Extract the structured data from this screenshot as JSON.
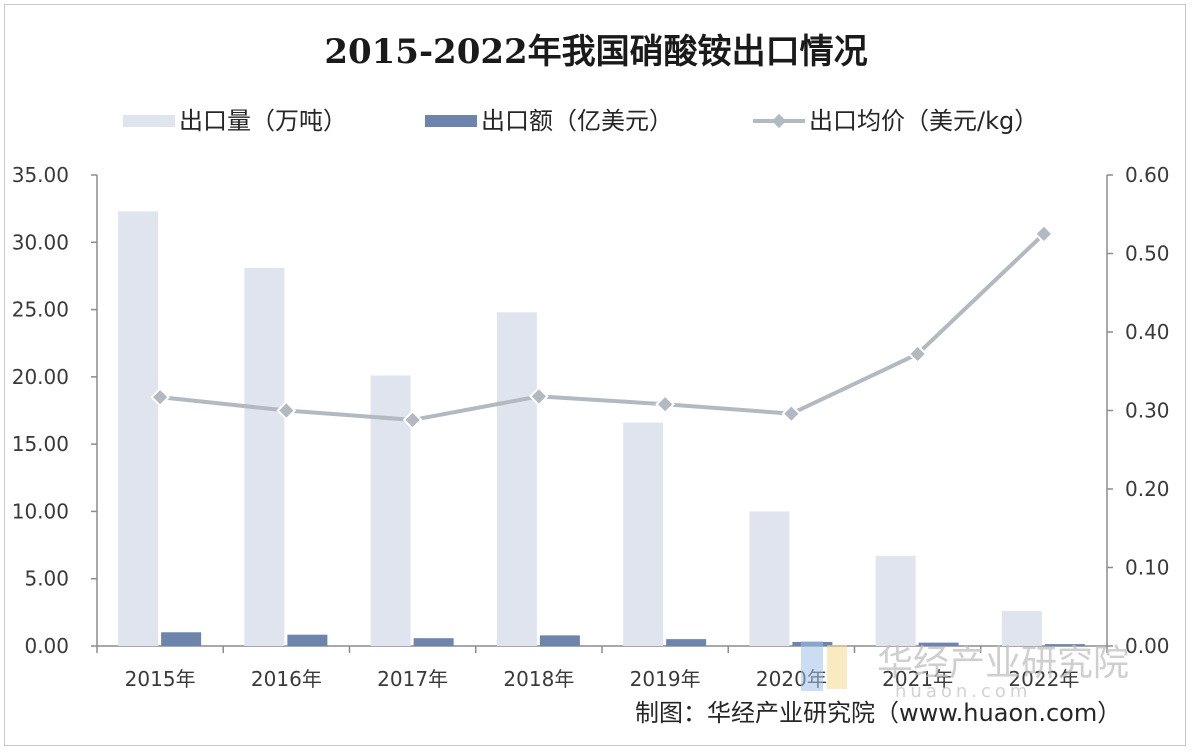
{
  "chart_data": {
    "type": "bar",
    "title": "2015-2022年我国硝酸铵出口情况",
    "categories": [
      "2015年",
      "2016年",
      "2017年",
      "2018年",
      "2019年",
      "2020年",
      "2021年",
      "2022年"
    ],
    "series": [
      {
        "name": "出口量（万吨）",
        "type": "bar",
        "axis": "left",
        "color": "#dfe4ee",
        "values": [
          32.3,
          28.1,
          20.1,
          24.8,
          16.6,
          10.0,
          6.7,
          2.6
        ]
      },
      {
        "name": "出口额（亿美元）",
        "type": "bar",
        "axis": "left",
        "color": "#6d84ac",
        "values": [
          1.02,
          0.84,
          0.58,
          0.79,
          0.51,
          0.3,
          0.25,
          0.14
        ]
      },
      {
        "name": "出口均价（美元/kg）",
        "type": "line",
        "axis": "right",
        "color": "#b3b9c1",
        "values": [
          0.317,
          0.3,
          0.288,
          0.318,
          0.308,
          0.296,
          0.372,
          0.525
        ]
      }
    ],
    "y_left": {
      "min": 0,
      "max": 35,
      "ticks": [
        "0.00",
        "5.00",
        "10.00",
        "15.00",
        "20.00",
        "25.00",
        "30.00",
        "35.00"
      ]
    },
    "y_right": {
      "min": 0,
      "max": 0.6,
      "ticks": [
        "0.00",
        "0.10",
        "0.20",
        "0.30",
        "0.40",
        "0.50",
        "0.60"
      ]
    },
    "legend_position": "top",
    "grid": false
  },
  "source": "制图：华经产业研究院（www.huaon.com）",
  "watermark": {
    "text": "华经产业研究院",
    "url": "huaon.com"
  }
}
